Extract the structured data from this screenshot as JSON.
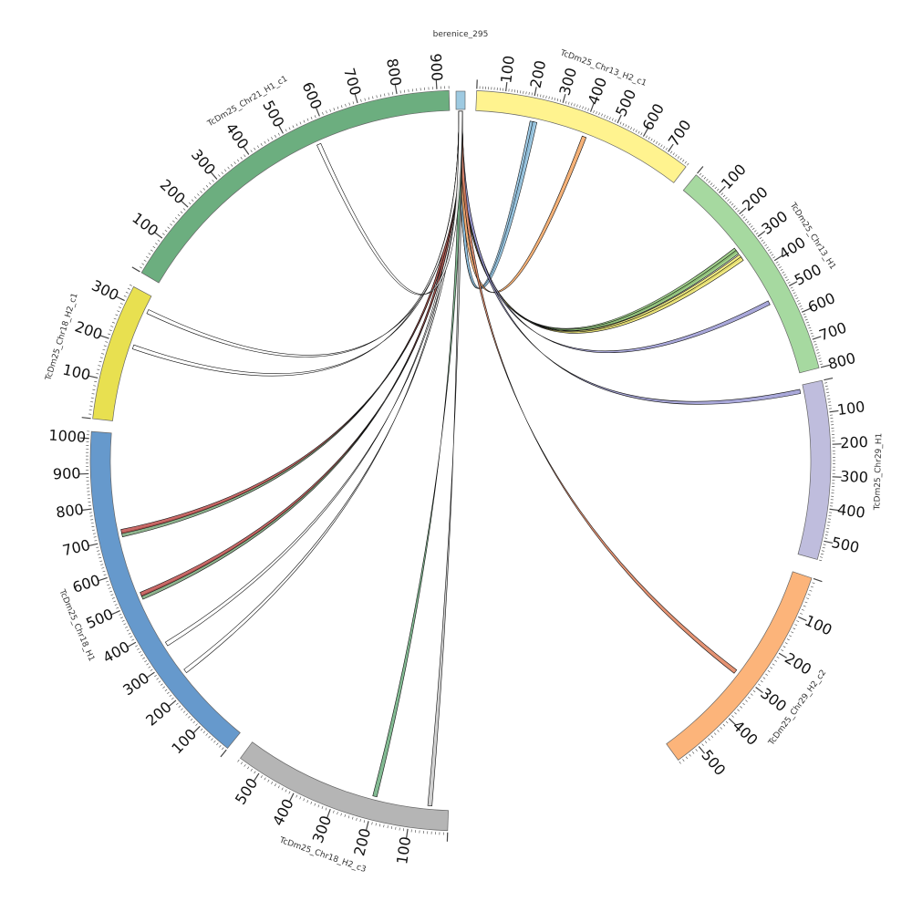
{
  "diagram": {
    "type": "circos",
    "query": {
      "name": "berenice_295",
      "color": "#9ecae1"
    },
    "segments": [
      {
        "name": "TcDm25_Chr13_H2_c1",
        "length": 780,
        "color": "#fff38f",
        "ticks": [
          "100",
          "200",
          "300",
          "400",
          "500",
          "600",
          "700"
        ]
      },
      {
        "name": "TcDm25_Chr13_H1",
        "length": 800,
        "color": "#a6d9a0",
        "ticks": [
          "100",
          "200",
          "300",
          "400",
          "500",
          "600",
          "700",
          "800"
        ]
      },
      {
        "name": "TcDm25_Chr29_H1",
        "length": 560,
        "color": "#bfbddd",
        "ticks": [
          "100",
          "200",
          "300",
          "400",
          "500"
        ]
      },
      {
        "name": "TcDm25_Chr29_H2_c2",
        "length": 560,
        "color": "#fcb47a",
        "ticks": [
          "100",
          "200",
          "300",
          "400",
          "500"
        ]
      },
      {
        "name": "TcDm25_Chr18_H2_c3",
        "length": 560,
        "color": "#b5b5b5",
        "ticks": [
          "100",
          "200",
          "300",
          "400",
          "500"
        ]
      },
      {
        "name": "TcDm25_Chr18_H1",
        "length": 1020,
        "color": "#6699cc",
        "ticks": [
          "100",
          "200",
          "300",
          "400",
          "500",
          "600",
          "700",
          "800",
          "900",
          "1000"
        ]
      },
      {
        "name": "TcDm25_Chr18_H2_c1",
        "length": 340,
        "color": "#e8e050",
        "ticks": [
          "100",
          "200",
          "300"
        ]
      },
      {
        "name": "TcDm25_Chr21_H1_c1",
        "length": 930,
        "color": "#6cae7f",
        "ticks": [
          "100",
          "200",
          "300",
          "400",
          "500",
          "600",
          "700",
          "800",
          "900"
        ]
      }
    ],
    "links": [
      {
        "seg": 0,
        "pos": 210,
        "color": "#8fc2e0"
      },
      {
        "seg": 0,
        "pos": 220,
        "color": "#8fc2e0"
      },
      {
        "seg": 0,
        "pos": 410,
        "color": "#f4a460"
      },
      {
        "seg": 1,
        "pos": 290,
        "color": "#90c878"
      },
      {
        "seg": 1,
        "pos": 300,
        "color": "#90c878"
      },
      {
        "seg": 1,
        "pos": 320,
        "color": "#f2ea70"
      },
      {
        "seg": 1,
        "pos": 330,
        "color": "#f2ea70"
      },
      {
        "seg": 1,
        "pos": 520,
        "color": "#9a99d4"
      },
      {
        "seg": 2,
        "pos": 20,
        "color": "#9a99d4"
      },
      {
        "seg": 3,
        "pos": 300,
        "color": "#e0805a"
      },
      {
        "seg": 4,
        "pos": 50,
        "color": "#c8c8c8"
      },
      {
        "seg": 4,
        "pos": 200,
        "color": "#6cae7f"
      },
      {
        "seg": 5,
        "pos": 250,
        "color": "#ffffff"
      },
      {
        "seg": 5,
        "pos": 350,
        "color": "#ffffff"
      },
      {
        "seg": 5,
        "pos": 510,
        "color": "#7aa77a"
      },
      {
        "seg": 5,
        "pos": 520,
        "color": "#c0504d"
      },
      {
        "seg": 5,
        "pos": 710,
        "color": "#7aa77a"
      },
      {
        "seg": 5,
        "pos": 720,
        "color": "#c0504d"
      },
      {
        "seg": 6,
        "pos": 200,
        "color": "#ffffff"
      },
      {
        "seg": 6,
        "pos": 300,
        "color": "#ffffff"
      },
      {
        "seg": 7,
        "pos": 570,
        "color": "#ffffff"
      }
    ]
  }
}
